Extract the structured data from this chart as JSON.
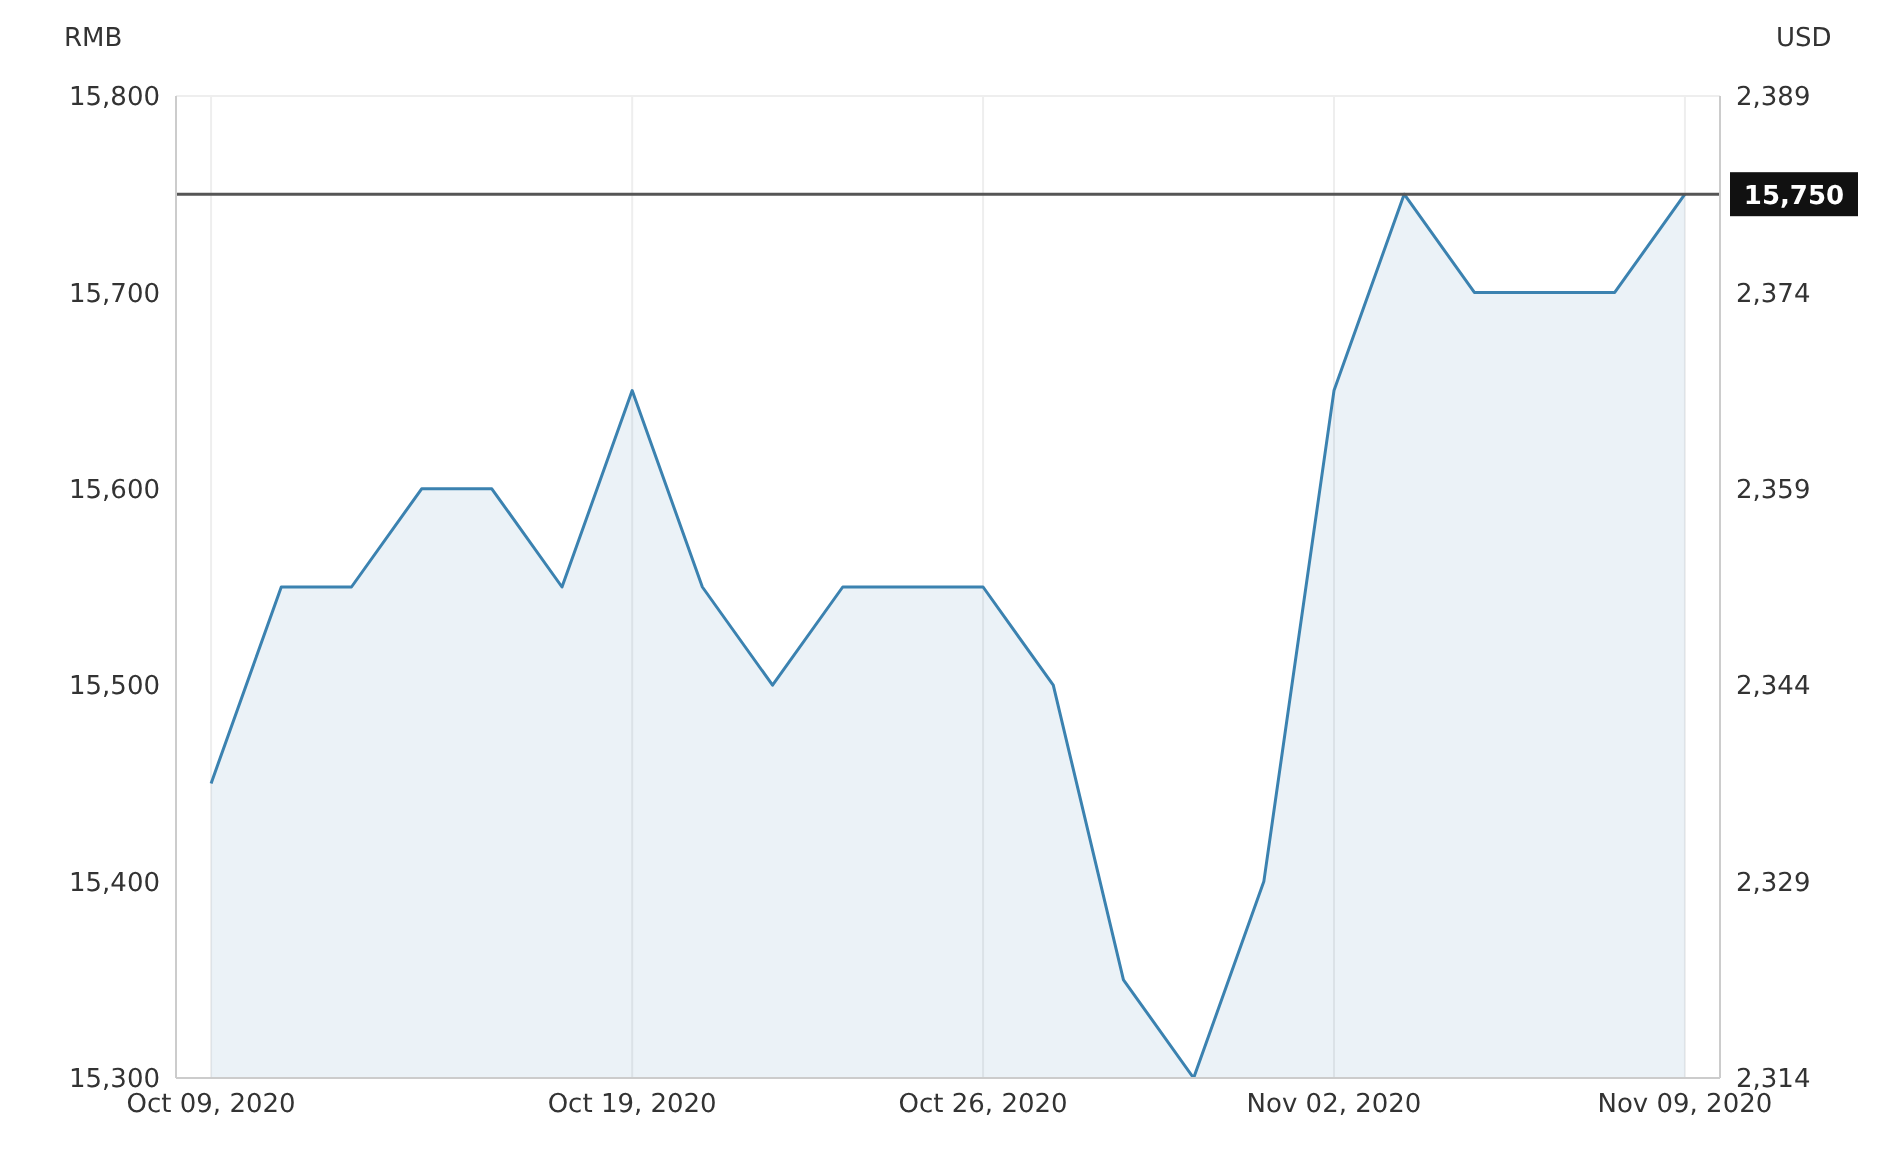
{
  "chart_data": {
    "type": "area",
    "ylabel": "RMB",
    "y2label": "USD",
    "categories": [
      "Oct 09, 2020",
      null,
      null,
      null,
      null,
      null,
      "Oct 19, 2020",
      null,
      null,
      null,
      null,
      "Oct 26, 2020",
      null,
      null,
      null,
      null,
      "Nov 02, 2020",
      null,
      null,
      null,
      null,
      "Nov 09, 2020"
    ],
    "series": [
      {
        "color": "#3b82b0",
        "values": [
          15450,
          15550,
          15550,
          15600,
          15600,
          15550,
          15650,
          15550,
          15500,
          15550,
          15550,
          15550,
          15500,
          15350,
          15300,
          15400,
          15650,
          15750,
          15700,
          15700,
          15700,
          15750
        ]
      }
    ],
    "ylim": [
      15300,
      15800
    ],
    "yticks": [
      {
        "value": 15300,
        "label": "15,300"
      },
      {
        "value": 15400,
        "label": "15,400"
      },
      {
        "value": 15500,
        "label": "15,500"
      },
      {
        "value": 15600,
        "label": "15,600"
      },
      {
        "value": 15700,
        "label": "15,700"
      },
      {
        "value": 15800,
        "label": "15,800"
      }
    ],
    "y2lim": [
      2314,
      2389
    ],
    "y2ticks": [
      {
        "value": 2314,
        "label": "2,314"
      },
      {
        "value": 2329,
        "label": "2,329"
      },
      {
        "value": 2344,
        "label": "2,344"
      },
      {
        "value": 2359,
        "label": "2,359"
      },
      {
        "value": 2374,
        "label": "2,374"
      },
      {
        "value": 2389,
        "label": "2,389"
      }
    ],
    "ref_lines": [
      {
        "axis": "y",
        "value": 15750,
        "label": "15,750",
        "color": "#555555"
      }
    ],
    "grid": true,
    "marker": "none",
    "line_style": "solid",
    "legend": false
  }
}
